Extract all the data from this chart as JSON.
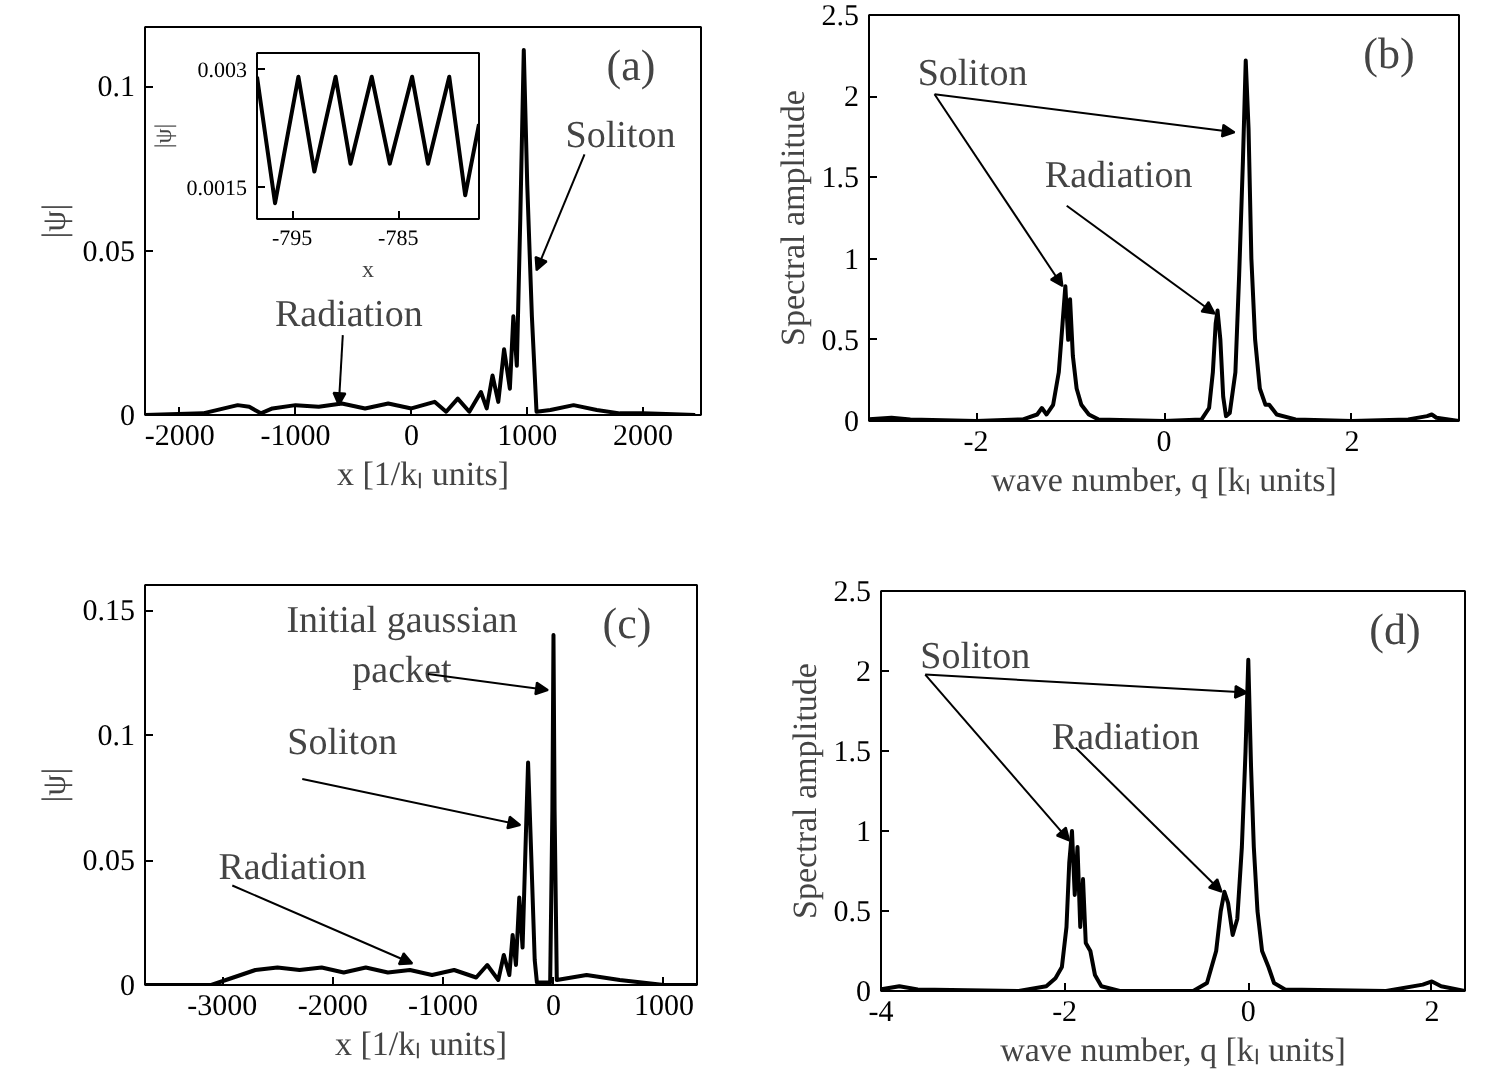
{
  "chart_data": [
    {
      "type": "line",
      "xlabel": "x [1/kₗ units]",
      "ylabel": "|ψ|",
      "color": "#000000",
      "xlim": [
        -2300,
        2500
      ],
      "ylim": [
        0,
        0.118
      ],
      "xticks": [
        -2000,
        -1000,
        0,
        1000,
        2000
      ],
      "yticks": [
        0,
        0.05,
        0.1
      ],
      "x": [
        -2300,
        -1800,
        -1500,
        -1400,
        -1300,
        -1200,
        -1000,
        -800,
        -600,
        -400,
        -200,
        0,
        200,
        300,
        400,
        500,
        600,
        650,
        700,
        750,
        800,
        850,
        880,
        910,
        940,
        970,
        1000,
        1040,
        1080,
        1200,
        1400,
        1600,
        1800,
        2000,
        2200,
        2450
      ],
      "values": [
        0,
        0.0005,
        0.003,
        0.0025,
        0.0005,
        0.002,
        0.003,
        0.0025,
        0.0035,
        0.002,
        0.0035,
        0.002,
        0.004,
        0.001,
        0.005,
        0.001,
        0.007,
        0.002,
        0.012,
        0.004,
        0.02,
        0.008,
        0.03,
        0.015,
        0.06,
        0.111,
        0.07,
        0.03,
        0.001,
        0.0015,
        0.003,
        0.0015,
        0.0005,
        0.0005,
        0.0003,
        0
      ],
      "annotations": [
        "(a)",
        {
          "text": "Radiation",
          "x": -627,
          "y": 0.003
        },
        {
          "text": "Soliton",
          "x": 1080,
          "y": 0.044
        }
      ]
    },
    {
      "type": "line",
      "xlabel": "x",
      "ylabel": "|ψ|",
      "color": "#000000",
      "xlim": [
        -798.3,
        -777.4
      ],
      "ylim": [
        0.0011,
        0.0032
      ],
      "xticks": [
        -795,
        -785
      ],
      "yticks": [
        0.0015,
        0.003
      ],
      "x": [
        -798.3,
        -796.6,
        -794.4,
        -792.9,
        -790.9,
        -789.5,
        -787.5,
        -785.8,
        -783.7,
        -782.2,
        -780.2,
        -778.7,
        -777.4
      ],
      "values": [
        0.0029,
        0.0013,
        0.0029,
        0.0017,
        0.0029,
        0.0018,
        0.0029,
        0.0018,
        0.0029,
        0.0018,
        0.0029,
        0.0014,
        0.0023
      ]
    },
    {
      "type": "line",
      "xlabel": "wave number, q [kₗ units]",
      "ylabel": "Spectral amplitude",
      "color": "#000000",
      "xlim": [
        -3.14,
        3.14
      ],
      "ylim": [
        0,
        2.5
      ],
      "xticks": [
        -2,
        0,
        2
      ],
      "yticks": [
        0,
        0.5,
        1,
        1.5,
        2,
        2.5
      ],
      "x": [
        -3.14,
        -2.9,
        -2.7,
        -2.0,
        -1.5,
        -1.35,
        -1.3,
        -1.25,
        -1.18,
        -1.12,
        -1.08,
        -1.05,
        -1.02,
        -1.0,
        -0.97,
        -0.93,
        -0.88,
        -0.8,
        -0.7,
        0,
        0.4,
        0.48,
        0.52,
        0.55,
        0.57,
        0.6,
        0.63,
        0.66,
        0.7,
        0.76,
        0.8,
        0.84,
        0.87,
        0.9,
        0.93,
        0.97,
        1.02,
        1.08,
        1.12,
        1.2,
        1.4,
        2.0,
        2.6,
        2.8,
        2.85,
        2.9,
        3.14
      ],
      "values": [
        0.01,
        0.02,
        0.01,
        0,
        0.01,
        0.04,
        0.08,
        0.04,
        0.1,
        0.3,
        0.6,
        0.83,
        0.5,
        0.75,
        0.4,
        0.2,
        0.1,
        0.04,
        0.01,
        0,
        0.01,
        0.08,
        0.3,
        0.6,
        0.68,
        0.5,
        0.15,
        0.03,
        0.05,
        0.3,
        0.9,
        1.6,
        2.22,
        1.8,
        1.0,
        0.5,
        0.2,
        0.1,
        0.1,
        0.04,
        0.01,
        0,
        0.01,
        0.03,
        0.04,
        0.02,
        0
      ],
      "annotations": [
        "(b)",
        {
          "text": "Soliton",
          "x": -1.08,
          "y": 0.83
        },
        {
          "text": "Radiation",
          "x": 0.54,
          "y": 0.66
        }
      ]
    },
    {
      "type": "line",
      "xlabel": "x [1/kₗ units]",
      "ylabel": "|ψ|",
      "color": "#000000",
      "xlim": [
        -3700,
        1300
      ],
      "ylim": [
        0,
        0.16
      ],
      "xticks": [
        -3000,
        -2000,
        -1000,
        0,
        1000
      ],
      "yticks": [
        0,
        0.05,
        0.1,
        0.15
      ],
      "x": [
        -3700,
        -3100,
        -2900,
        -2700,
        -2500,
        -2300,
        -2100,
        -1900,
        -1700,
        -1500,
        -1300,
        -1100,
        -900,
        -700,
        -600,
        -500,
        -450,
        -400,
        -370,
        -340,
        -310,
        -280,
        -250,
        -230,
        -200,
        -170,
        -150,
        -30,
        -10,
        0,
        10,
        30,
        300,
        600,
        1000,
        1300
      ],
      "values": [
        0,
        0,
        0.003,
        0.006,
        0.007,
        0.006,
        0.007,
        0.005,
        0.007,
        0.005,
        0.006,
        0.004,
        0.006,
        0.003,
        0.008,
        0.002,
        0.012,
        0.004,
        0.02,
        0.008,
        0.035,
        0.015,
        0.06,
        0.089,
        0.05,
        0.01,
        0.001,
        0.001,
        0.07,
        0.14,
        0.07,
        0.002,
        0.004,
        0.002,
        0,
        0
      ],
      "annotations": [
        "(c)",
        {
          "text": "Initial gaussian packet",
          "x": -50,
          "y": 0.118
        },
        {
          "text": "Soliton",
          "x": -301,
          "y": 0.064
        },
        {
          "text": "Radiation",
          "x": -1279,
          "y": 0.0086
        }
      ]
    },
    {
      "type": "line",
      "xlabel": "wave number, q [kₗ units]",
      "ylabel": "Spectral amplitude",
      "color": "#000000",
      "xlim": [
        -4,
        2.36
      ],
      "ylim": [
        0,
        2.5
      ],
      "xticks": [
        -4,
        -2,
        0,
        2
      ],
      "yticks": [
        0,
        0.5,
        1,
        1.5,
        2,
        2.5
      ],
      "x": [
        -4,
        -3.8,
        -3.6,
        -2.5,
        -2.2,
        -2.1,
        -2.03,
        -1.98,
        -1.95,
        -1.92,
        -1.89,
        -1.86,
        -1.83,
        -1.8,
        -1.77,
        -1.72,
        -1.67,
        -1.6,
        -1.4,
        -0.6,
        -0.45,
        -0.35,
        -0.3,
        -0.26,
        -0.22,
        -0.17,
        -0.12,
        -0.07,
        -0.03,
        0,
        0.03,
        0.06,
        0.1,
        0.15,
        0.22,
        0.28,
        0.4,
        1.5,
        1.9,
        2.0,
        2.1,
        2.36
      ],
      "values": [
        0.01,
        0.03,
        0.01,
        0,
        0.03,
        0.08,
        0.15,
        0.4,
        0.8,
        1.0,
        0.6,
        0.9,
        0.4,
        0.7,
        0.3,
        0.25,
        0.1,
        0.03,
        0,
        0,
        0.05,
        0.25,
        0.5,
        0.62,
        0.55,
        0.35,
        0.45,
        0.9,
        1.5,
        2.07,
        1.4,
        0.9,
        0.5,
        0.25,
        0.15,
        0.05,
        0.01,
        0,
        0.04,
        0.06,
        0.03,
        0
      ],
      "annotations": [
        "(d)",
        {
          "text": "Soliton",
          "x": -1.95,
          "y": 0.94
        },
        {
          "text": "Radiation",
          "x": -0.29,
          "y": 0.62
        }
      ]
    }
  ]
}
